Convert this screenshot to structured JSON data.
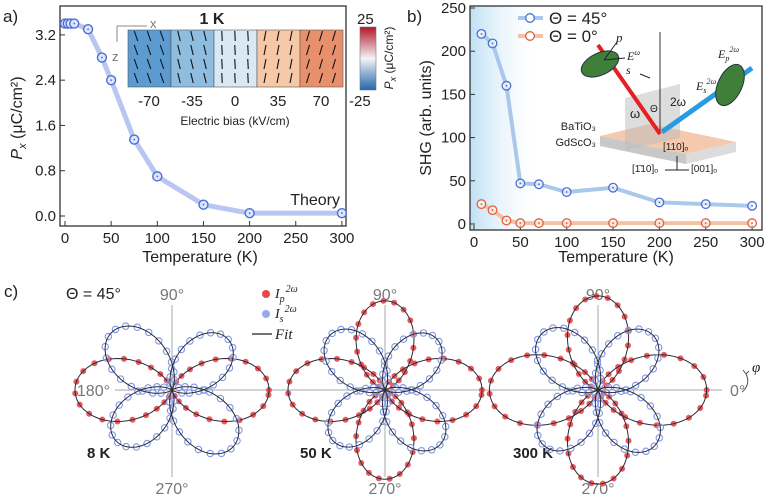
{
  "chart_data": [
    {
      "panel_label": "a)",
      "type": "line",
      "xlabel": "Temperature (K)",
      "ylabel": "P",
      "ylabel_sub": "x",
      "ylabel_unit": " (μC/cm²)",
      "xlim": [
        0,
        300
      ],
      "ylim": [
        0,
        3.5
      ],
      "xticks": [
        0,
        50,
        100,
        150,
        200,
        250,
        300
      ],
      "yticks": [
        "0.0",
        "0.8",
        "1.6",
        "2.4",
        "3.2"
      ],
      "annotation": "Theory",
      "color": "#4a6fd6",
      "line_color": "#b9c6f2",
      "x": [
        0,
        3,
        6,
        10,
        25,
        40,
        50,
        75,
        100,
        150,
        200,
        300
      ],
      "y": [
        3.4,
        3.4,
        3.4,
        3.4,
        3.3,
        2.8,
        2.4,
        1.35,
        0.7,
        0.2,
        0.05,
        0.05
      ],
      "inset": {
        "title": "1 K",
        "axis_x": "x",
        "axis_z": "z",
        "xlabel": "Electric bias (kV/cm)",
        "categories": [
          "-70",
          "-35",
          "0",
          "35",
          "70"
        ],
        "colors": [
          "#5b9bd0",
          "#8fbde0",
          "#d9e8f5",
          "#f6c8a8",
          "#e8906c"
        ],
        "colorbar": {
          "max": "25",
          "min": "-25",
          "label": "P",
          "label_sub": "x",
          "label_unit": " (μC/cm²)",
          "colors": [
            "#b2182b",
            "#f4f4f4",
            "#2166ac"
          ]
        }
      }
    },
    {
      "panel_label": "b)",
      "type": "line",
      "xlabel": "Temperature (K)",
      "ylabel": "SHG (arb. units)",
      "xlim": [
        0,
        300
      ],
      "ylim": [
        0,
        250
      ],
      "xticks": [
        0,
        50,
        100,
        150,
        200,
        250,
        300
      ],
      "yticks": [
        0,
        50,
        100,
        150,
        200,
        250
      ],
      "legend_placement": "top-left",
      "shaded_region_x": [
        0,
        75
      ],
      "series": [
        {
          "name": "Θ = 45°",
          "color": "#4a6fd6",
          "line_color": "#a9c8ea",
          "x": [
            8,
            20,
            35,
            50,
            70,
            100,
            150,
            200,
            250,
            300
          ],
          "y": [
            220,
            209,
            160,
            47,
            46,
            37,
            42,
            25,
            23,
            21
          ]
        },
        {
          "name": "Θ = 0°",
          "color": "#e0603c",
          "line_color": "#f6c0a4",
          "x": [
            8,
            20,
            35,
            50,
            70,
            100,
            150,
            200,
            250,
            300
          ],
          "y": [
            23,
            16,
            4,
            1,
            1,
            1,
            1,
            1,
            1,
            1
          ]
        }
      ],
      "inset_labels": {
        "p": "p",
        "e_omega": "E",
        "e_omega_sup": "ω",
        "s": "s",
        "ep": "E",
        "ep_sub": "p",
        "ep_sup": "2ω",
        "es": "E",
        "es_sub": "s",
        "es_sup": "2ω",
        "two_omega": "2ω",
        "omega": "ω",
        "theta": "Θ",
        "film": "BaTiO₃",
        "substrate": "GdScO₃",
        "dir_110": "[110]ₒ",
        "dir_1m10": "[1̄10]ₒ",
        "dir_001": "[001]ₒ"
      }
    },
    {
      "panel_label": "c)",
      "type": "polar",
      "condition": "Θ = 45°",
      "angle_labels": {
        "top": "90°",
        "bottom": "270°",
        "left": "180°",
        "right": "0°",
        "phi": "φ"
      },
      "legend": [
        {
          "name": "I",
          "sub": "p",
          "sup": "2ω",
          "color": "#e84848",
          "marker": "filled"
        },
        {
          "name": "I",
          "sub": "s",
          "sup": "2ω",
          "color": "#7f98e6",
          "marker": "open"
        },
        {
          "name": "Fit",
          "color": "#222222",
          "marker": "line"
        }
      ],
      "plots": [
        {
          "label": "8 K",
          "p_lobes": [
            {
              "angle": 0,
              "amp": 1.0
            }
          ],
          "s_lobes": [
            {
              "angle": 42,
              "amp": 0.78
            },
            {
              "angle": 137,
              "amp": 0.86
            }
          ]
        },
        {
          "label": "50 K",
          "p_lobes": [
            {
              "angle": 0,
              "amp": 1.0
            },
            {
              "angle": 90,
              "amp": 0.92
            }
          ],
          "s_lobes": [
            {
              "angle": 45,
              "amp": 0.75
            },
            {
              "angle": 135,
              "amp": 0.8
            }
          ]
        },
        {
          "label": "300 K",
          "p_lobes": [
            {
              "angle": 0,
              "amp": 1.12
            },
            {
              "angle": 90,
              "amp": 0.97
            }
          ],
          "s_lobes": [
            {
              "angle": 45,
              "amp": 0.8
            },
            {
              "angle": 135,
              "amp": 0.82
            }
          ]
        }
      ]
    }
  ]
}
